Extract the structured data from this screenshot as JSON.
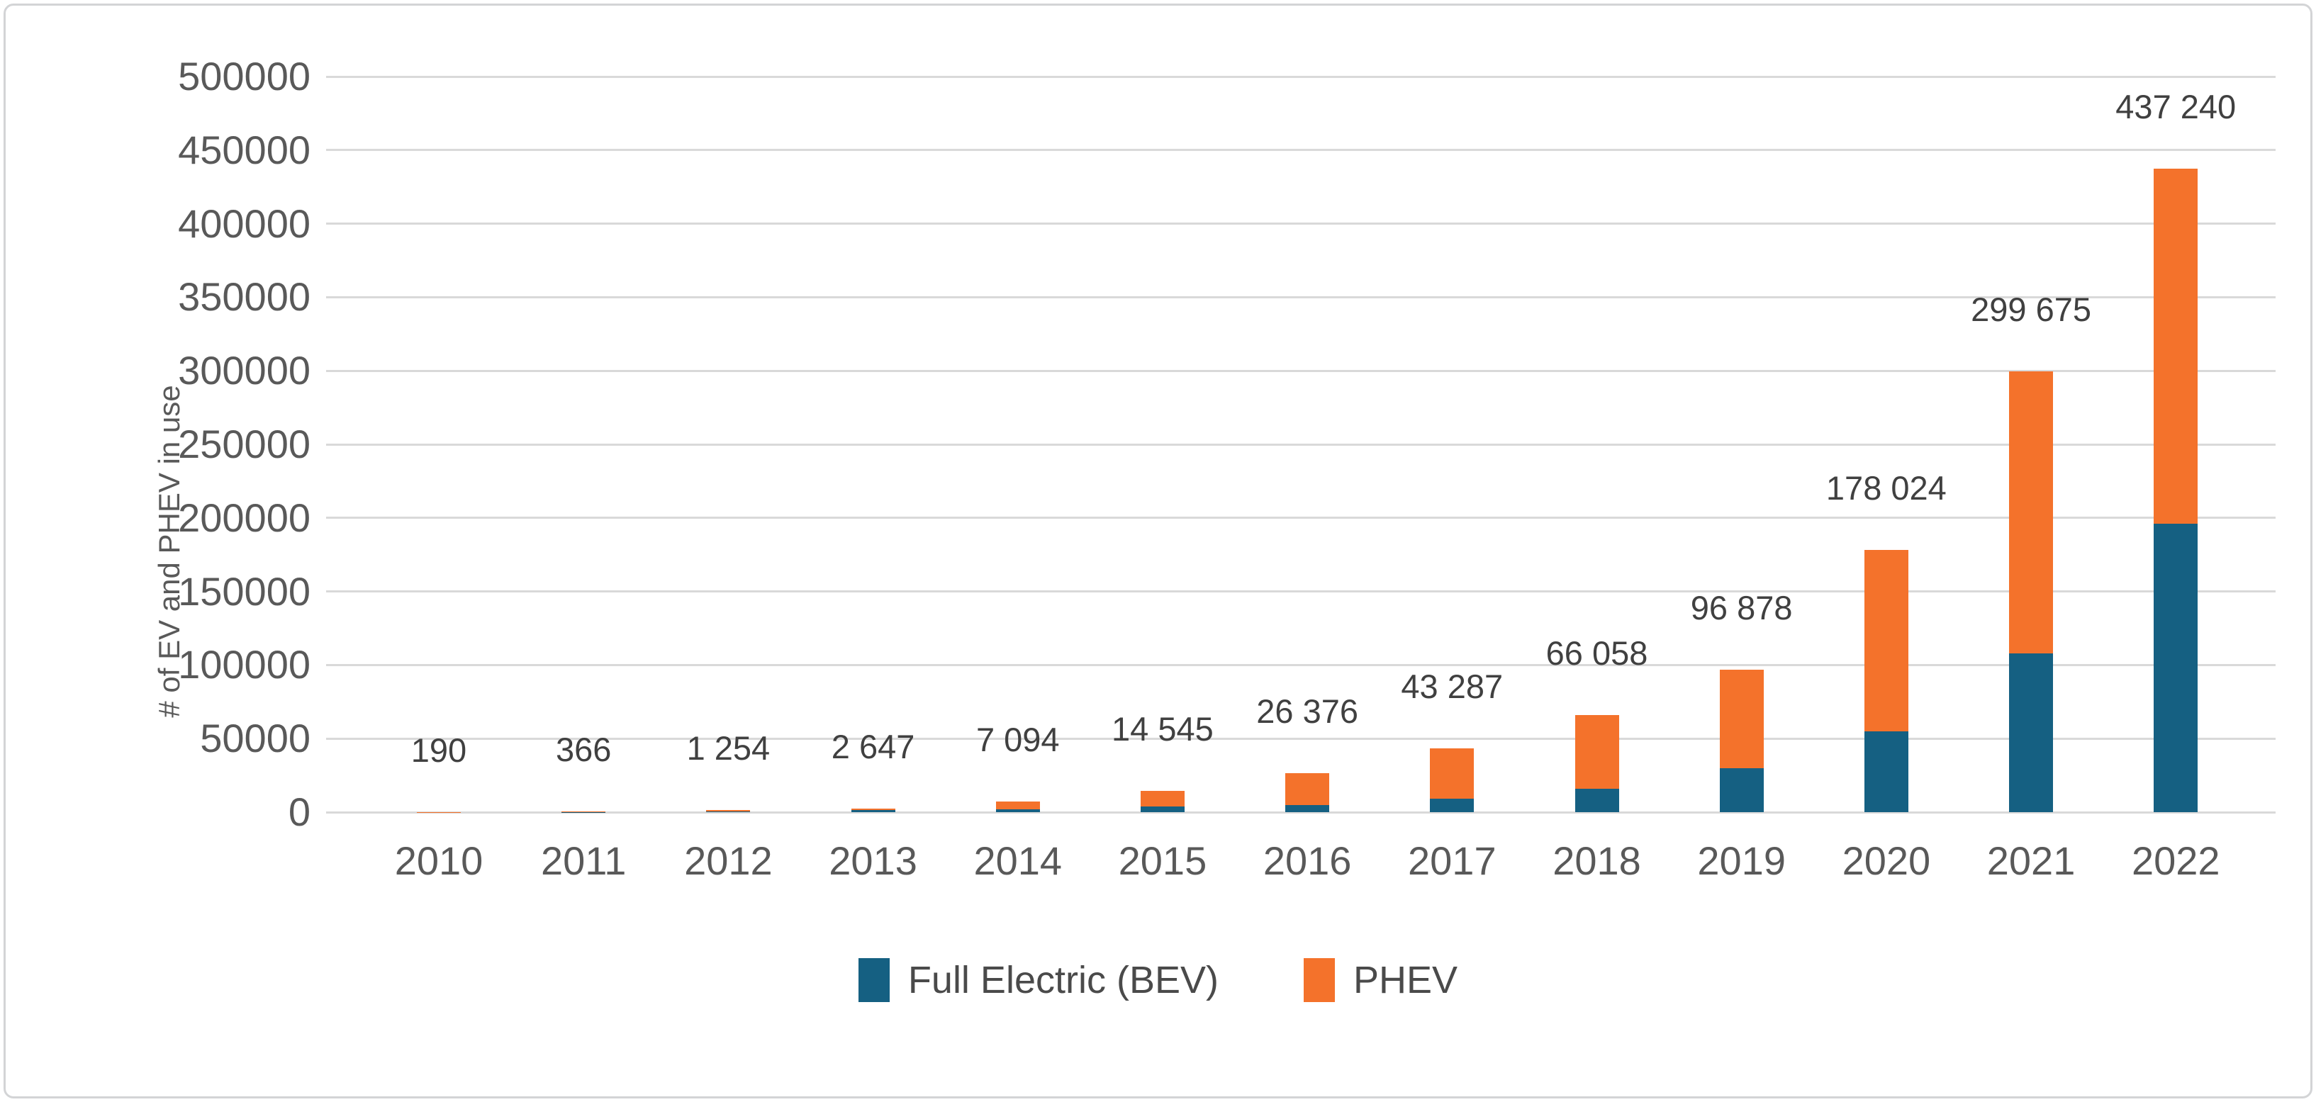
{
  "chart_data": {
    "type": "bar",
    "stacked": true,
    "title": "",
    "ylabel": "# of EV and PHEV in use",
    "xlabel": "",
    "ylim": [
      0,
      500000
    ],
    "ytick_step": 50000,
    "ytick_labels": [
      "0",
      "50000",
      "100000",
      "150000",
      "200000",
      "250000",
      "300000",
      "350000",
      "400000",
      "450000",
      "500000"
    ],
    "grid": true,
    "legend_position": "bottom",
    "categories": [
      "2010",
      "2011",
      "2012",
      "2013",
      "2014",
      "2015",
      "2016",
      "2017",
      "2018",
      "2019",
      "2020",
      "2021",
      "2022"
    ],
    "series": [
      {
        "name": "Full Electric (BEV)",
        "color": "#156082",
        "values": [
          100,
          180,
          600,
          1300,
          1800,
          4000,
          5000,
          9000,
          16000,
          30000,
          55000,
          108000,
          196000
        ]
      },
      {
        "name": "PHEV",
        "color": "#f4722b",
        "values": [
          90,
          186,
          654,
          1347,
          5294,
          10545,
          21376,
          34287,
          50058,
          66878,
          123024,
          191675,
          241240
        ]
      }
    ],
    "totals": [
      190,
      366,
      1254,
      2647,
      7094,
      14545,
      26376,
      43287,
      66058,
      96878,
      178024,
      299675,
      437240
    ],
    "total_labels": [
      "190",
      "366",
      "1 254",
      "2 647",
      "7 094",
      "14 545",
      "26 376",
      "43 287",
      "66 058",
      "96 878",
      "178 024",
      "299 675",
      "437 240"
    ]
  },
  "colors": {
    "bev": "#156082",
    "phev": "#f4722b",
    "gridline": "#d9d9d9",
    "axis_text": "#595959",
    "data_label_text": "#404040",
    "frame_border": "#d3d4d6"
  }
}
